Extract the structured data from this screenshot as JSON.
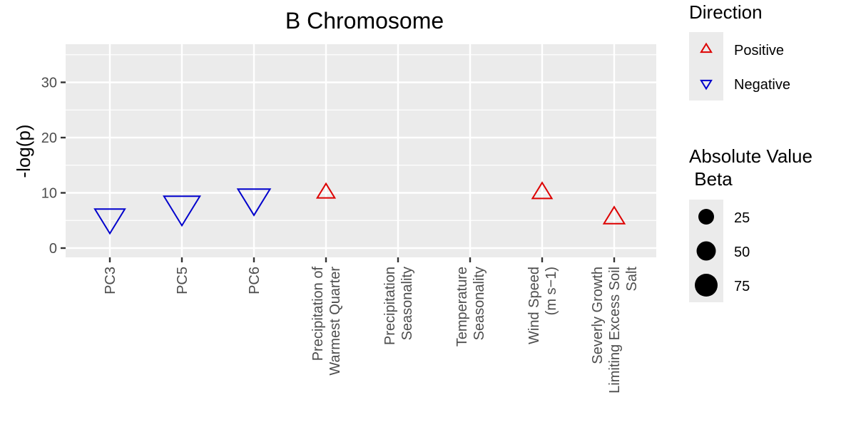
{
  "chart_data": {
    "type": "scatter",
    "title": "B Chromosome",
    "xlabel": "",
    "ylabel": "-log(p)",
    "ylim": [
      -1.5,
      36.5
    ],
    "yticks": [
      0,
      10,
      20,
      30
    ],
    "categories": [
      "PC3",
      "PC5",
      "PC6",
      "Precipitation of\nWarmest Quarter",
      "Precipitation\nSeasonality",
      "Temperature\nSeasonality",
      "Wind Speed\n(m s−1)",
      "Severly Growth\nLimiting Excess Soil\nSalt"
    ],
    "points": [
      {
        "category": "PC3",
        "y": 5.5,
        "direction": "Negative",
        "abs_beta": 50
      },
      {
        "category": "PC5",
        "y": 7.5,
        "direction": "Negative",
        "abs_beta": 80
      },
      {
        "category": "PC6",
        "y": 9.0,
        "direction": "Negative",
        "abs_beta": 60
      },
      {
        "category": "Precipitation of\nWarmest Quarter",
        "y": 10.0,
        "direction": "Positive",
        "abs_beta": 10
      },
      {
        "category": "Wind Speed\n(m s−1)",
        "y": 10.0,
        "direction": "Positive",
        "abs_beta": 14
      },
      {
        "category": "Severly Growth\nLimiting Excess Soil\nSalt",
        "y": 5.5,
        "direction": "Positive",
        "abs_beta": 17
      }
    ],
    "grid": true,
    "legend_position": "right",
    "direction_legend": {
      "title": "Direction",
      "items": [
        {
          "label": "Positive",
          "color": "#dd0000",
          "shape": "triangle-up"
        },
        {
          "label": "Negative",
          "color": "#0000cc",
          "shape": "triangle-down"
        }
      ]
    },
    "size_legend": {
      "title_lines": [
        "Absolute Value",
        " Beta"
      ],
      "items": [
        {
          "label": "25",
          "value": 25
        },
        {
          "label": "50",
          "value": 50
        },
        {
          "label": "75",
          "value": 75
        }
      ]
    },
    "panel_color": "#ebebeb",
    "grid_color": "#ffffff"
  }
}
